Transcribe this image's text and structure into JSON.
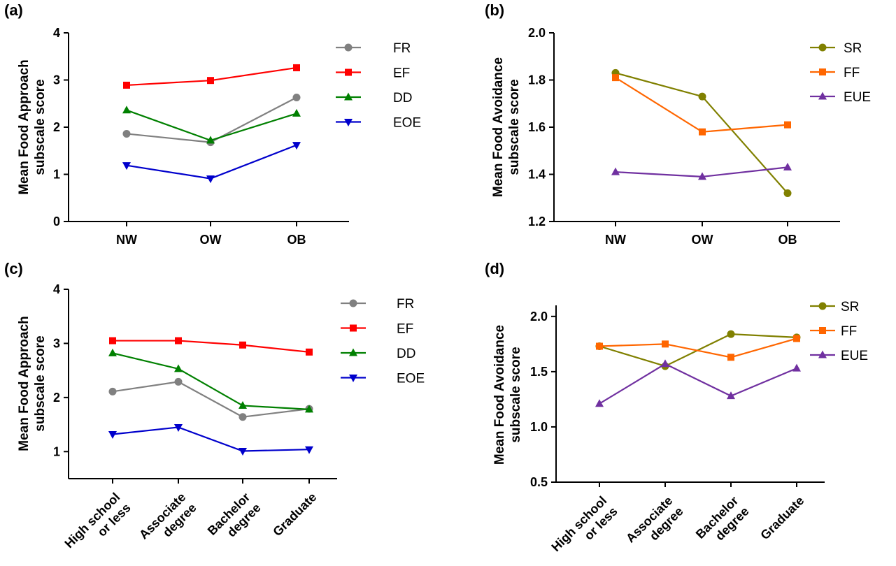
{
  "chart_data": [
    {
      "panel": "(a)",
      "type": "line",
      "ylabel": [
        "Mean Food Approach",
        "subscale score"
      ],
      "categories": [
        [
          "NW"
        ],
        [
          "OW"
        ],
        [
          "OB"
        ]
      ],
      "ylim": [
        0,
        4
      ],
      "yticks": [
        "0",
        "1",
        "2",
        "3",
        "4"
      ],
      "grid": false,
      "legend_position": "top-right",
      "series": [
        {
          "name": "FR",
          "color": "#808080",
          "marker": "circle",
          "values": [
            1.86,
            1.68,
            2.63
          ]
        },
        {
          "name": "EF",
          "color": "#ff0000",
          "marker": "square",
          "values": [
            2.89,
            2.99,
            3.26
          ]
        },
        {
          "name": "DD",
          "color": "#008000",
          "marker": "triangle-up",
          "values": [
            2.36,
            1.72,
            2.29
          ]
        },
        {
          "name": "EOE",
          "color": "#0000cc",
          "marker": "triangle-down",
          "values": [
            1.19,
            0.91,
            1.62
          ]
        }
      ]
    },
    {
      "panel": "(b)",
      "type": "line",
      "ylabel": [
        "Mean Food Avoidance",
        "subscale score"
      ],
      "categories": [
        [
          "NW"
        ],
        [
          "OW"
        ],
        [
          "OB"
        ]
      ],
      "ylim": [
        1.2,
        2.0
      ],
      "yticks": [
        "1.2",
        "1.4",
        "1.6",
        "1.8",
        "2.0"
      ],
      "grid": false,
      "legend_position": "top-right",
      "series": [
        {
          "name": "SR",
          "color": "#808000",
          "marker": "circle",
          "values": [
            1.83,
            1.73,
            1.32
          ]
        },
        {
          "name": "FF",
          "color": "#ff6600",
          "marker": "square",
          "values": [
            1.81,
            1.58,
            1.61
          ]
        },
        {
          "name": "EUE",
          "color": "#7030a0",
          "marker": "triangle-up",
          "values": [
            1.41,
            1.39,
            1.43
          ]
        }
      ]
    },
    {
      "panel": "(c)",
      "type": "line",
      "ylabel": [
        "Mean Food Approach",
        "subscale score"
      ],
      "categories": [
        [
          "High school",
          "or less"
        ],
        [
          "Associate",
          "degree"
        ],
        [
          "Bachelor",
          "degree"
        ],
        [
          "Graduate"
        ]
      ],
      "ylim": [
        0.5,
        4
      ],
      "yticks": [
        "1",
        "2",
        "3",
        "4"
      ],
      "grid": false,
      "legend_position": "top-right",
      "series": [
        {
          "name": "FR",
          "color": "#808080",
          "marker": "circle",
          "values": [
            2.11,
            2.29,
            1.64,
            1.79
          ]
        },
        {
          "name": "EF",
          "color": "#ff0000",
          "marker": "square",
          "values": [
            3.05,
            3.05,
            2.97,
            2.84
          ]
        },
        {
          "name": "DD",
          "color": "#008000",
          "marker": "triangle-up",
          "values": [
            2.82,
            2.53,
            1.85,
            1.78
          ]
        },
        {
          "name": "EOE",
          "color": "#0000cc",
          "marker": "triangle-down",
          "values": [
            1.32,
            1.45,
            1.01,
            1.04
          ]
        }
      ]
    },
    {
      "panel": "(d)",
      "type": "line",
      "ylabel": [
        "Mean Food Avoidance",
        "subscale score"
      ],
      "categories": [
        [
          "High school",
          "or less"
        ],
        [
          "Associate",
          "degree"
        ],
        [
          "Bachelor",
          "degree"
        ],
        [
          "Graduate"
        ]
      ],
      "ylim": [
        0.5,
        2.1
      ],
      "yticks": [
        "0.5",
        "1.0",
        "1.5",
        "2.0"
      ],
      "grid": false,
      "legend_position": "top-right",
      "series": [
        {
          "name": "SR",
          "color": "#808000",
          "marker": "circle",
          "values": [
            1.73,
            1.55,
            1.84,
            1.81
          ]
        },
        {
          "name": "FF",
          "color": "#ff6600",
          "marker": "square",
          "values": [
            1.73,
            1.75,
            1.63,
            1.8
          ]
        },
        {
          "name": "EUE",
          "color": "#7030a0",
          "marker": "triangle-up",
          "values": [
            1.21,
            1.57,
            1.28,
            1.53
          ]
        }
      ]
    }
  ]
}
